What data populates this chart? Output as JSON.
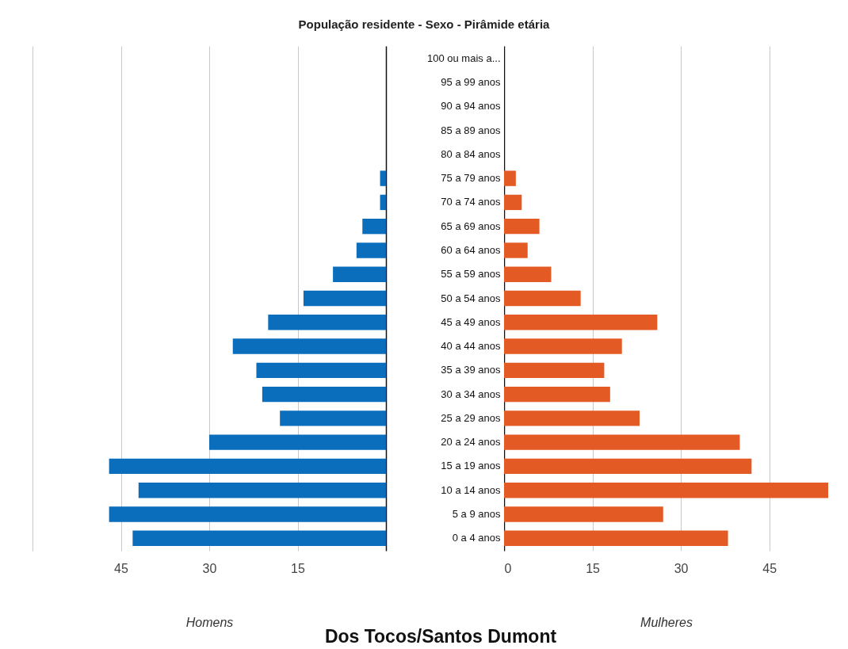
{
  "chart_data": [
    {
      "type": "bar",
      "orientation": "horizontal",
      "title": "População residente - Sexo - Pirâmide etária",
      "annotations": [
        "Dos Tocos/Santos Dumont"
      ],
      "xlabel": "Homens",
      "categories": [
        "100 ou mais a...",
        "95 a 99 anos",
        "90 a 94 anos",
        "85 a 89 anos",
        "80 a 84 anos",
        "75 a 79 anos",
        "70 a 74 anos",
        "65 a 69 anos",
        "60 a 64 anos",
        "55 a 59 anos",
        "50 a 54 anos",
        "45 a 49 anos",
        "40 a 44 anos",
        "35 a 39 anos",
        "30 a 34 anos",
        "25 a 29 anos",
        "20 a 24 anos",
        "15 a 19 anos",
        "10 a 14 anos",
        "5 a 9 anos",
        "0 a 4 anos"
      ],
      "values": [
        0,
        0,
        0,
        0,
        0,
        1,
        1,
        4,
        5,
        9,
        14,
        20,
        26,
        22,
        21,
        18,
        30,
        47,
        42,
        47,
        43
      ],
      "color": "#0a6ebd",
      "xlim": [
        60,
        0
      ],
      "xticks": [
        {
          "value": 60,
          "label": null
        },
        45,
        30,
        15
      ],
      "grid": "x"
    },
    {
      "type": "bar",
      "orientation": "horizontal",
      "xlabel": "Mulheres",
      "categories": [
        null,
        null,
        null,
        null,
        null,
        null,
        null,
        null,
        null,
        null,
        null,
        null,
        null,
        null,
        null,
        null,
        null,
        null,
        null,
        null,
        null
      ],
      "values": [
        0,
        0,
        0,
        0,
        0,
        2,
        3,
        6,
        4,
        8,
        13,
        26,
        20,
        17,
        18,
        23,
        40,
        42,
        55,
        27,
        38
      ],
      "color": "#e45a25",
      "xlim": [
        0,
        55
      ],
      "xticks": [
        0,
        15,
        30,
        45
      ],
      "grid": "x",
      "tick_labels": "x"
    }
  ]
}
